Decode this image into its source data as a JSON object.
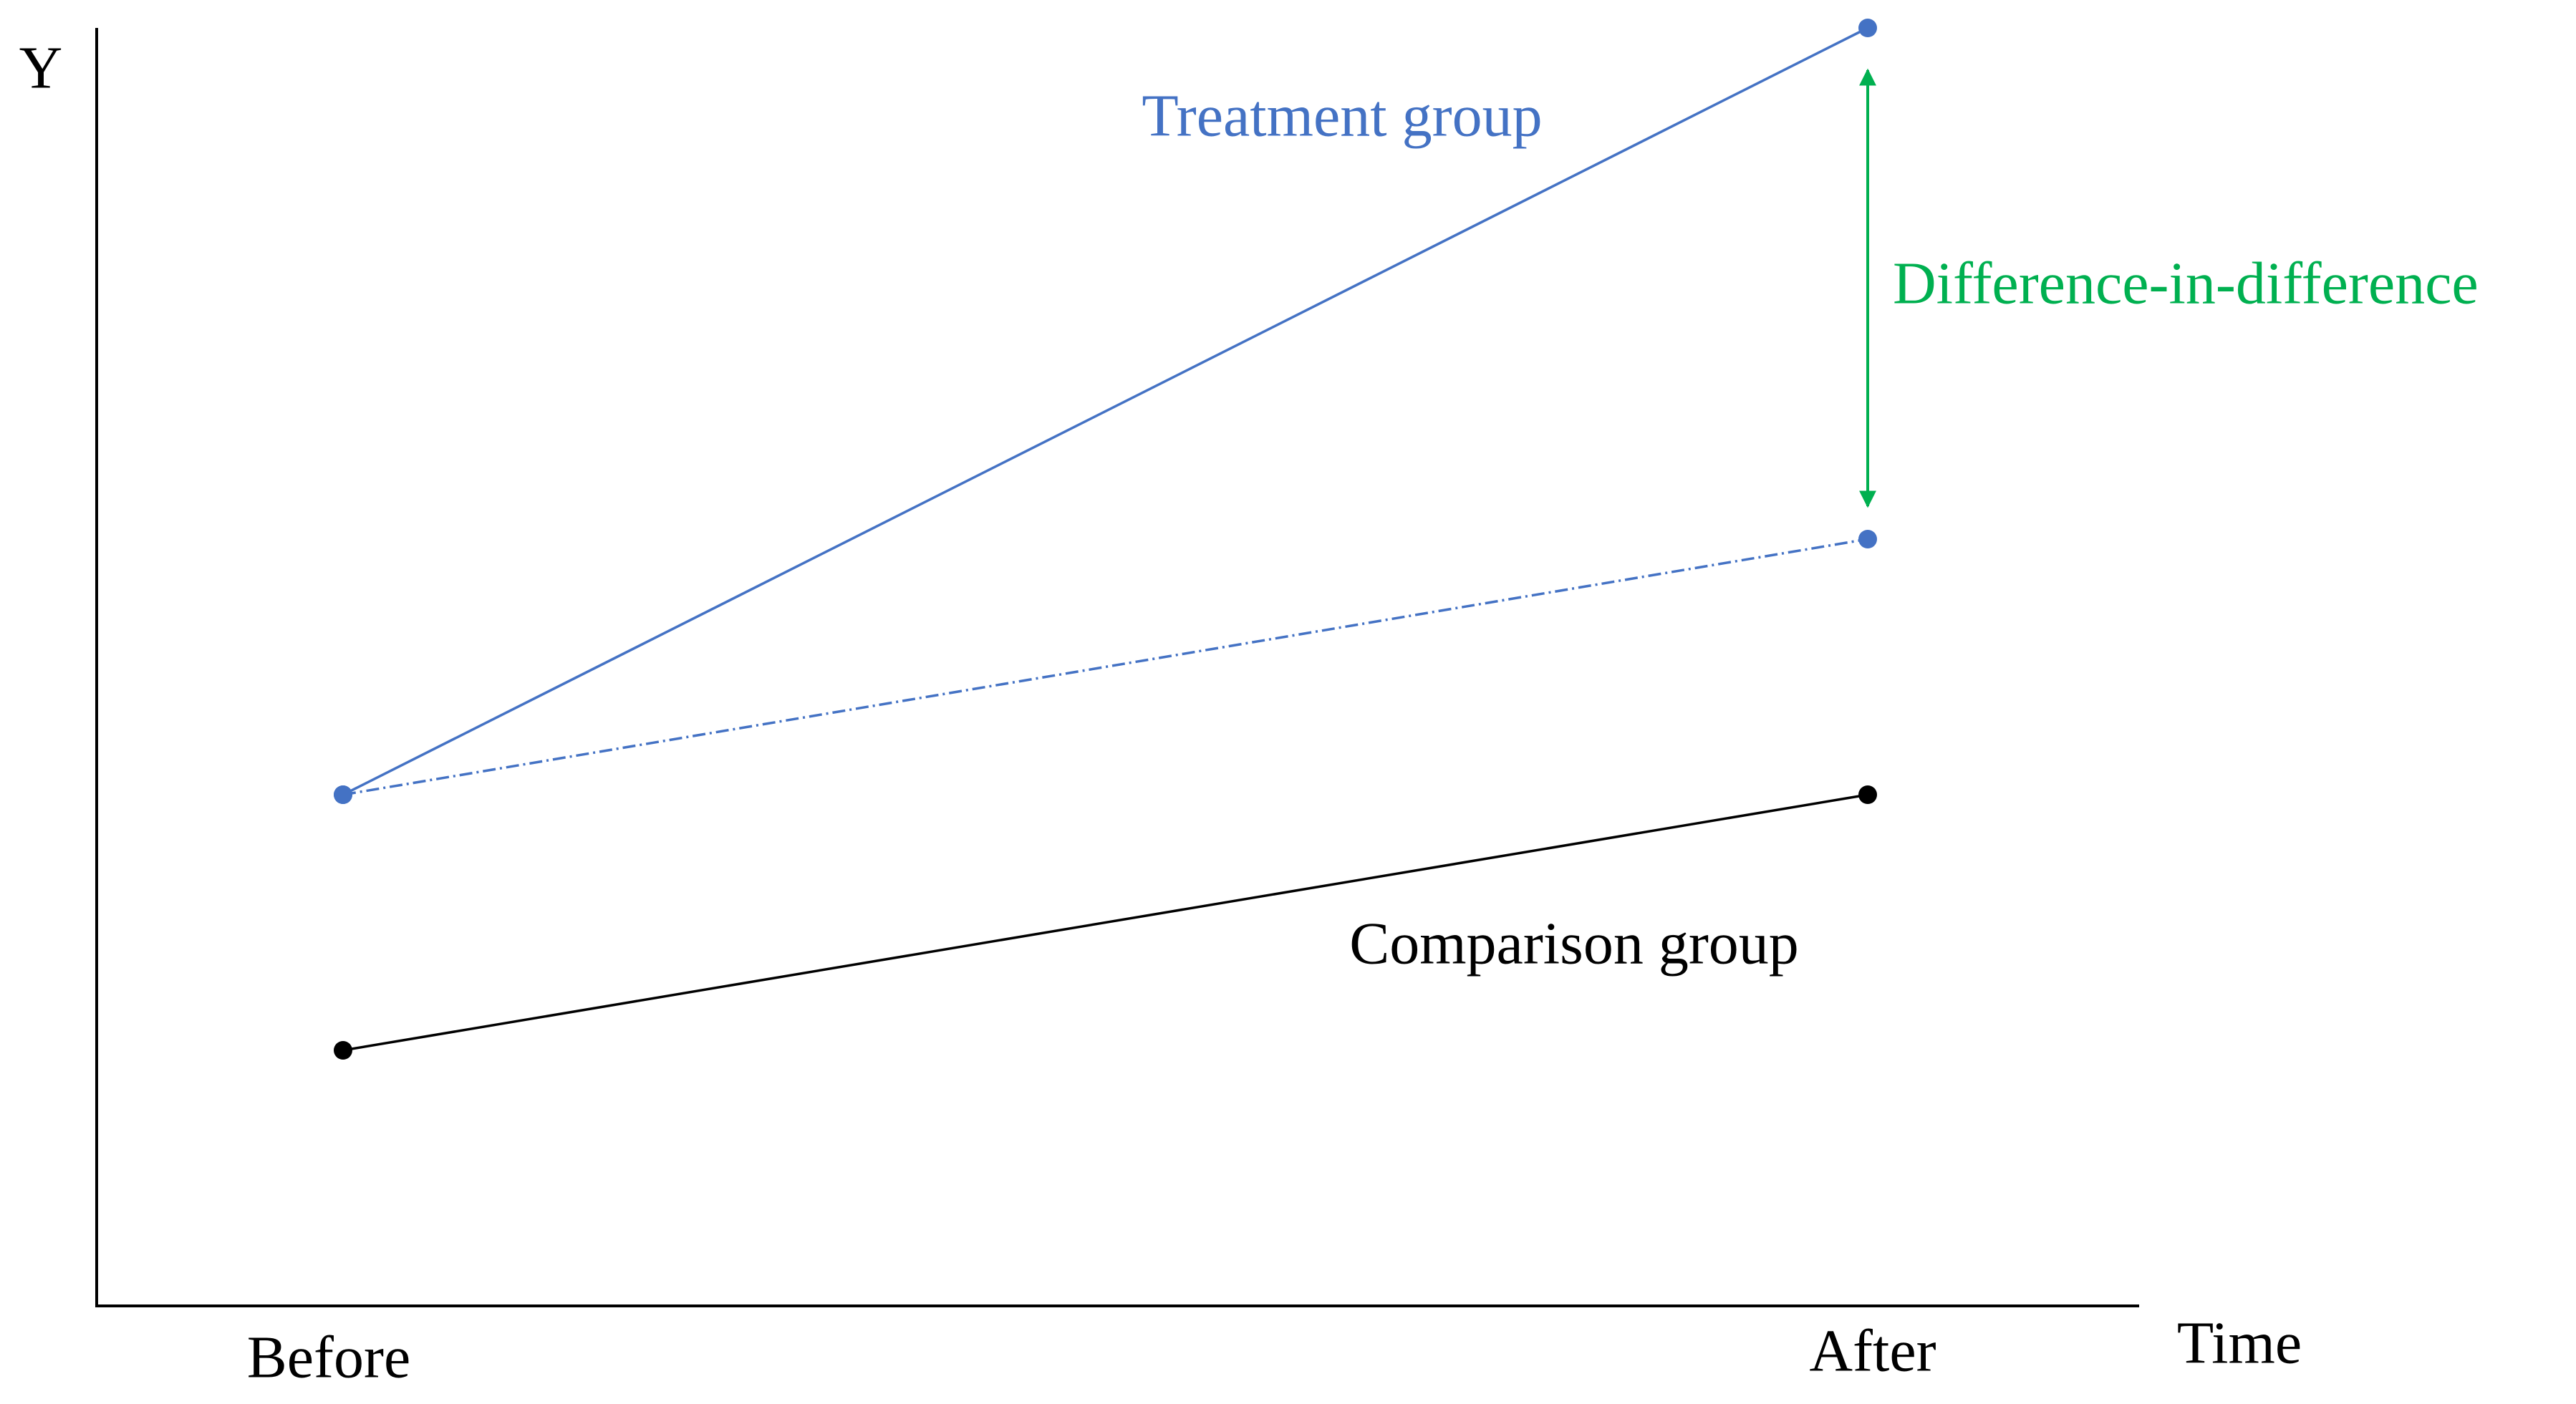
{
  "chart_data": {
    "type": "line",
    "xlabel": "Time",
    "ylabel": "Y",
    "categories": [
      "Before",
      "After"
    ],
    "ylim": [
      0,
      100
    ],
    "series": [
      {
        "name": "Treatment group",
        "color": "#4472c4",
        "values": [
          40,
          100
        ],
        "linestyle": "solid"
      },
      {
        "color": "#4472c4",
        "values": [
          40,
          60
        ],
        "linestyle": "dashdot"
      },
      {
        "name": "Comparison group",
        "color": "#000000",
        "values": [
          20,
          40
        ],
        "linestyle": "solid"
      }
    ],
    "annotation": {
      "text": "Difference-in-difference",
      "color": "#00b050"
    }
  }
}
